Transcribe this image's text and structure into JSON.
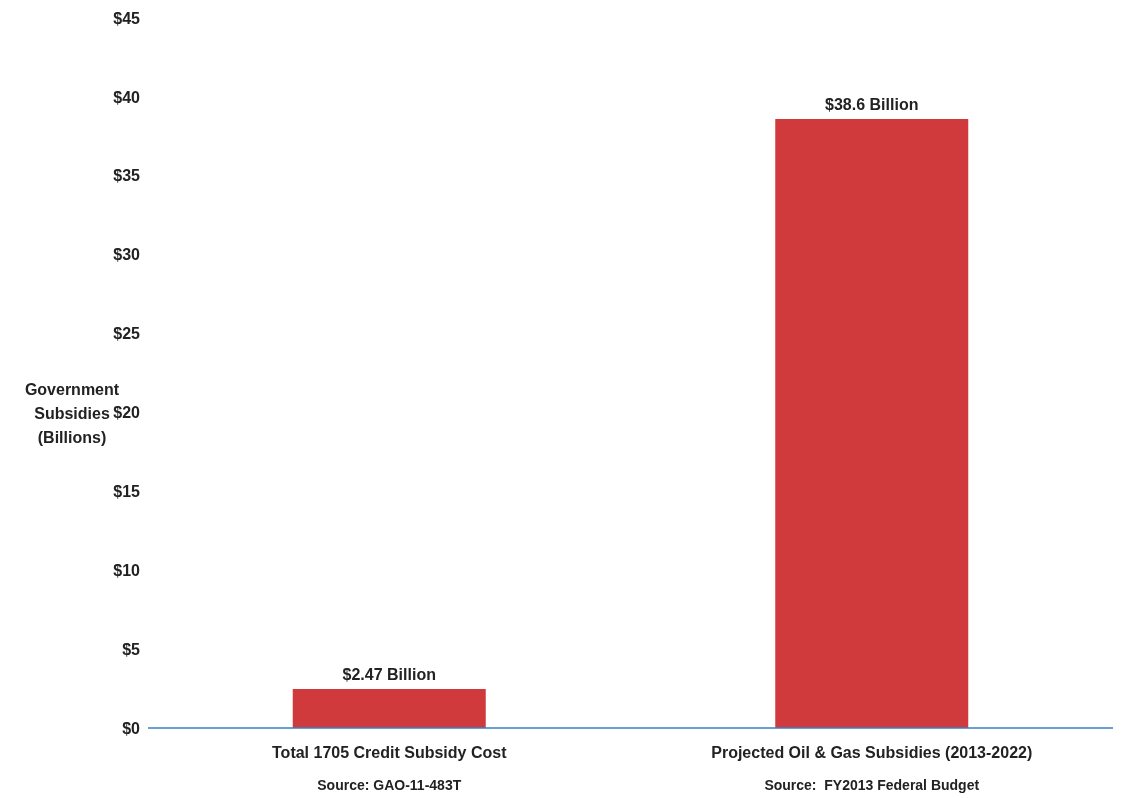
{
  "chart_data": {
    "type": "bar",
    "ylabel": "Government Subsidies (Billions)",
    "categories": [
      "Total 1705 Credit Subsidy Cost",
      "Projected Oil & Gas Subsidies (2013-2022)"
    ],
    "values": [
      2.47,
      38.6
    ],
    "color": "#d03a3c",
    "value_labels": [
      "$2.47 Billion",
      "$38.6 Billion"
    ],
    "ylim": [
      0,
      45
    ],
    "yticks": [
      {
        "value": 0,
        "label": "$0"
      },
      {
        "value": 5,
        "label": "$5"
      },
      {
        "value": 10,
        "label": "$10"
      },
      {
        "value": 15,
        "label": "$15"
      },
      {
        "value": 20,
        "label": "$20"
      },
      {
        "value": 25,
        "label": "$25"
      },
      {
        "value": 30,
        "label": "$30"
      },
      {
        "value": 35,
        "label": "$35"
      },
      {
        "value": 40,
        "label": "$40"
      },
      {
        "value": 45,
        "label": "$45"
      }
    ],
    "grid": false,
    "legend": false,
    "annotations": [
      "Source: GAO-11-483T",
      "Source:  FY2013 Federal Budget"
    ]
  }
}
